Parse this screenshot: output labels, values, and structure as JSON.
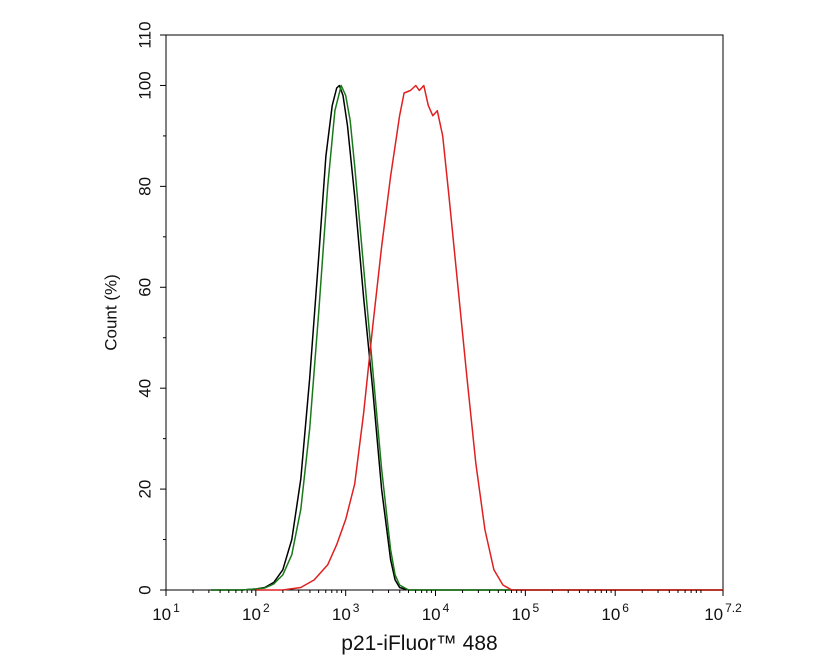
{
  "chart_data": {
    "type": "line",
    "title": "",
    "xlabel": "p21-iFluor™ 488",
    "ylabel": "Count  (%)",
    "x_scale": "log10",
    "xlim": [
      1,
      7.2
    ],
    "ylim": [
      0,
      110
    ],
    "x_ticks": [
      {
        "value": 1,
        "base": "10",
        "exp": "1"
      },
      {
        "value": 2,
        "base": "10",
        "exp": "2"
      },
      {
        "value": 3,
        "base": "10",
        "exp": "3"
      },
      {
        "value": 4,
        "base": "10",
        "exp": "4"
      },
      {
        "value": 5,
        "base": "10",
        "exp": "5"
      },
      {
        "value": 6,
        "base": "10",
        "exp": "6"
      },
      {
        "value": 7.2,
        "base": "10",
        "exp": "7.2"
      }
    ],
    "y_ticks": [
      "0",
      "20",
      "40",
      "60",
      "80",
      "100",
      "110"
    ],
    "y_tick_values": [
      0,
      20,
      40,
      60,
      80,
      100,
      110
    ],
    "grid": false,
    "legend": "none",
    "series": [
      {
        "color": "#000000",
        "points": [
          [
            1.5,
            0
          ],
          [
            1.85,
            0
          ],
          [
            2.0,
            0.2
          ],
          [
            2.1,
            0.5
          ],
          [
            2.2,
            1.5
          ],
          [
            2.3,
            4
          ],
          [
            2.4,
            10
          ],
          [
            2.5,
            22
          ],
          [
            2.6,
            42
          ],
          [
            2.7,
            66
          ],
          [
            2.78,
            86
          ],
          [
            2.85,
            96
          ],
          [
            2.9,
            99.5
          ],
          [
            2.93,
            100
          ],
          [
            2.97,
            98
          ],
          [
            3.02,
            92
          ],
          [
            3.1,
            78
          ],
          [
            3.2,
            58
          ],
          [
            3.3,
            40
          ],
          [
            3.4,
            20
          ],
          [
            3.5,
            6
          ],
          [
            3.55,
            2
          ],
          [
            3.6,
            0.5
          ],
          [
            3.7,
            0
          ],
          [
            7.2,
            0
          ]
        ]
      },
      {
        "color": "#1a7a1a",
        "points": [
          [
            1.5,
            0
          ],
          [
            1.85,
            0
          ],
          [
            2.0,
            0.2
          ],
          [
            2.1,
            0.4
          ],
          [
            2.2,
            1.2
          ],
          [
            2.3,
            3
          ],
          [
            2.4,
            7
          ],
          [
            2.5,
            16
          ],
          [
            2.6,
            32
          ],
          [
            2.7,
            55
          ],
          [
            2.8,
            80
          ],
          [
            2.88,
            95
          ],
          [
            2.95,
            100
          ],
          [
            3.0,
            98
          ],
          [
            3.05,
            93
          ],
          [
            3.1,
            84
          ],
          [
            3.2,
            64
          ],
          [
            3.3,
            44
          ],
          [
            3.4,
            24
          ],
          [
            3.5,
            8
          ],
          [
            3.55,
            3
          ],
          [
            3.6,
            1
          ],
          [
            3.7,
            0
          ],
          [
            7.2,
            0
          ]
        ]
      },
      {
        "color": "#e02020",
        "points": [
          [
            2.0,
            0
          ],
          [
            2.3,
            0
          ],
          [
            2.5,
            0.5
          ],
          [
            2.65,
            2
          ],
          [
            2.8,
            5
          ],
          [
            2.9,
            9
          ],
          [
            3.0,
            14
          ],
          [
            3.1,
            21
          ],
          [
            3.2,
            35
          ],
          [
            3.3,
            52
          ],
          [
            3.4,
            68
          ],
          [
            3.5,
            82
          ],
          [
            3.6,
            94
          ],
          [
            3.65,
            98.5
          ],
          [
            3.72,
            99
          ],
          [
            3.78,
            100
          ],
          [
            3.82,
            99
          ],
          [
            3.87,
            100
          ],
          [
            3.92,
            96
          ],
          [
            3.97,
            94
          ],
          [
            4.02,
            95
          ],
          [
            4.08,
            90
          ],
          [
            4.15,
            78
          ],
          [
            4.25,
            60
          ],
          [
            4.35,
            42
          ],
          [
            4.45,
            25
          ],
          [
            4.55,
            12
          ],
          [
            4.65,
            4
          ],
          [
            4.75,
            1
          ],
          [
            4.85,
            0
          ],
          [
            7.2,
            0
          ]
        ]
      }
    ]
  }
}
